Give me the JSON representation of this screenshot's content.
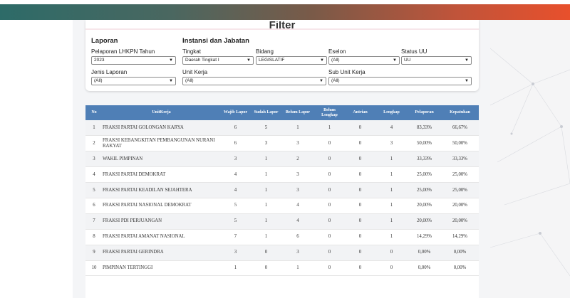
{
  "filter": {
    "title": "Filter",
    "section_laporan": "Laporan",
    "section_instansi": "Instansi dan Jabatan",
    "fields": {
      "pelaporan": {
        "label": "Pelaporan LHKPN Tahun",
        "value": "2023"
      },
      "tingkat": {
        "label": "Tingkat",
        "value": "Daerah Tingkat I"
      },
      "bidang": {
        "label": "Bidang",
        "value": "LEGISLATIF"
      },
      "eselon": {
        "label": "Eselon",
        "value": "(All)"
      },
      "status_uu": {
        "label": "Status UU",
        "value": "UU"
      },
      "jenis_laporan": {
        "label": "Jenis Laporan",
        "value": "(All)"
      },
      "unit_kerja": {
        "label": "Unit Kerja",
        "value": "(All)"
      },
      "sub_unit_kerja": {
        "label": "Sub Unit Kerja",
        "value": "(All)"
      }
    }
  },
  "table": {
    "headers": {
      "no": "No",
      "unit": "UnitKerja",
      "wajib": "Wajib Lapor",
      "sudah": "Sudah Lapor",
      "belum": "Belum Lapor",
      "belum_lengkap_1": "Belum",
      "belum_lengkap_2": "Lengkap",
      "antrian": "Antrian",
      "lengkap": "Lengkap",
      "pelaporan": "Pelaporan",
      "kepatuhan": "Kepatuhan"
    },
    "rows": [
      {
        "no": "1",
        "unit": [
          "FRAKSI PARTAI GOLONGAN KARYA"
        ],
        "wajib": "6",
        "sudah": "5",
        "belum": "1",
        "belum_lengkap": "1",
        "antrian": "0",
        "lengkap": "4",
        "pelaporan": "83,33%",
        "kepatuhan": "66,67%"
      },
      {
        "no": "2",
        "unit": [
          "FRAKSI KEBANGKITAN PEMBANGUNAN NURANI",
          "RAKYAT"
        ],
        "wajib": "6",
        "sudah": "3",
        "belum": "3",
        "belum_lengkap": "0",
        "antrian": "0",
        "lengkap": "3",
        "pelaporan": "50,00%",
        "kepatuhan": "50,00%"
      },
      {
        "no": "3",
        "unit": [
          "WAKIL PIMPINAN"
        ],
        "wajib": "3",
        "sudah": "1",
        "belum": "2",
        "belum_lengkap": "0",
        "antrian": "0",
        "lengkap": "1",
        "pelaporan": "33,33%",
        "kepatuhan": "33,33%"
      },
      {
        "no": "4",
        "unit": [
          "FRAKSI PARTAI DEMOKRAT"
        ],
        "wajib": "4",
        "sudah": "1",
        "belum": "3",
        "belum_lengkap": "0",
        "antrian": "0",
        "lengkap": "1",
        "pelaporan": "25,00%",
        "kepatuhan": "25,00%"
      },
      {
        "no": "5",
        "unit": [
          "FRAKSI PARTAI KEADILAN SEJAHTERA"
        ],
        "wajib": "4",
        "sudah": "1",
        "belum": "3",
        "belum_lengkap": "0",
        "antrian": "0",
        "lengkap": "1",
        "pelaporan": "25,00%",
        "kepatuhan": "25,00%"
      },
      {
        "no": "6",
        "unit": [
          "FRAKSI PARTAI NASIONAL DEMOKRAT"
        ],
        "wajib": "5",
        "sudah": "1",
        "belum": "4",
        "belum_lengkap": "0",
        "antrian": "0",
        "lengkap": "1",
        "pelaporan": "20,00%",
        "kepatuhan": "20,00%"
      },
      {
        "no": "7",
        "unit": [
          "FRAKSI PDI PERJUANGAN"
        ],
        "wajib": "5",
        "sudah": "1",
        "belum": "4",
        "belum_lengkap": "0",
        "antrian": "0",
        "lengkap": "1",
        "pelaporan": "20,00%",
        "kepatuhan": "20,00%"
      },
      {
        "no": "8",
        "unit": [
          "FRAKSI PARTAI AMANAT NASIONAL"
        ],
        "wajib": "7",
        "sudah": "1",
        "belum": "6",
        "belum_lengkap": "0",
        "antrian": "0",
        "lengkap": "1",
        "pelaporan": "14,29%",
        "kepatuhan": "14,29%"
      },
      {
        "no": "9",
        "unit": [
          "FRAKSI PARTAI GERINDRA"
        ],
        "wajib": "3",
        "sudah": "0",
        "belum": "3",
        "belum_lengkap": "0",
        "antrian": "0",
        "lengkap": "0",
        "pelaporan": "0,00%",
        "kepatuhan": "0,00%"
      },
      {
        "no": "10",
        "unit": [
          "PIMPINAN TERTINGGI"
        ],
        "wajib": "1",
        "sudah": "0",
        "belum": "1",
        "belum_lengkap": "0",
        "antrian": "0",
        "lengkap": "0",
        "pelaporan": "0,00%",
        "kepatuhan": "0,00%"
      }
    ]
  },
  "colors": {
    "header_bg": "#4f7fb6",
    "gradient_start": "#2d6b68",
    "gradient_end": "#e8502c"
  }
}
